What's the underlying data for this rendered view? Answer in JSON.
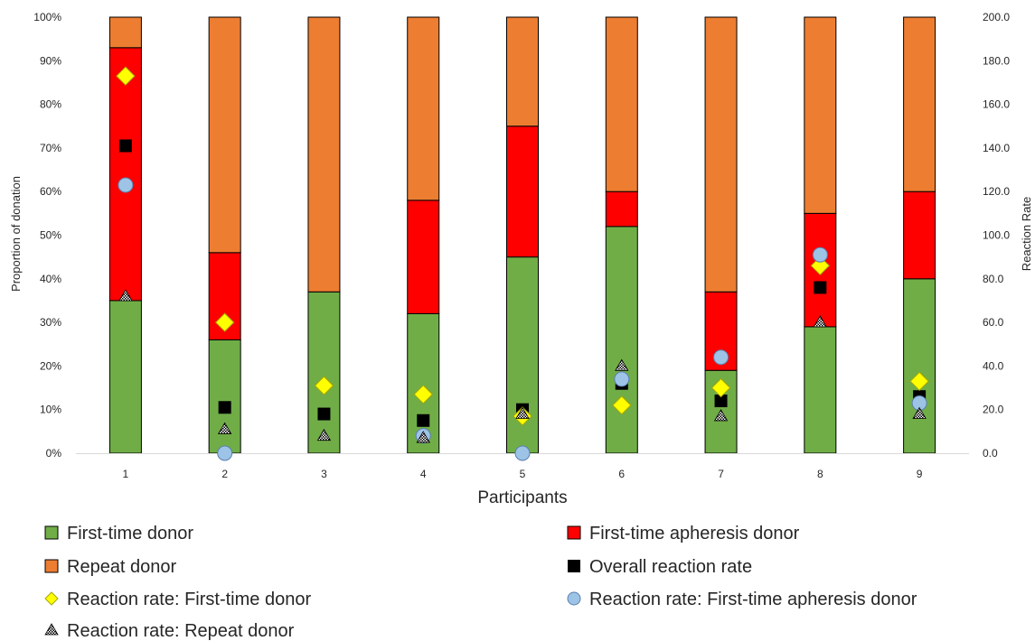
{
  "chart_data": {
    "type": "bar",
    "stacked": true,
    "categories": [
      "1",
      "2",
      "3",
      "4",
      "5",
      "6",
      "7",
      "8",
      "9"
    ],
    "xlabel": "Participants",
    "ylabel": "Proportion of donation",
    "y2label": "Reaction Rate",
    "ylim": [
      0,
      100
    ],
    "y2lim": [
      0,
      200
    ],
    "y_ticks": [
      "0%",
      "10%",
      "20%",
      "30%",
      "40%",
      "50%",
      "60%",
      "70%",
      "80%",
      "90%",
      "100%"
    ],
    "y2_ticks": [
      "0.0",
      "20.0",
      "40.0",
      "60.0",
      "80.0",
      "100.0",
      "120.0",
      "140.0",
      "160.0",
      "180.0",
      "200.0"
    ],
    "grid": false,
    "legend_position": "bottom",
    "series": [
      {
        "name": "First-time donor",
        "kind": "bar",
        "axis": "left",
        "color": "#70ad47",
        "values": [
          35,
          26,
          37,
          32,
          45,
          52,
          19,
          29,
          40
        ]
      },
      {
        "name": "First-time apheresis donor",
        "kind": "bar",
        "axis": "left",
        "color": "#ff0000",
        "values": [
          58,
          20,
          0,
          26,
          30,
          8,
          18,
          26,
          20
        ]
      },
      {
        "name": "Repeat donor",
        "kind": "bar",
        "axis": "left",
        "color": "#ed7d31",
        "values": [
          7,
          54,
          63,
          42,
          25,
          40,
          63,
          45,
          40
        ]
      },
      {
        "name": "Overall reaction rate",
        "kind": "marker",
        "marker": "square",
        "axis": "right",
        "color": "#000000",
        "values": [
          141,
          21,
          18,
          15,
          20,
          32,
          24,
          76,
          26
        ]
      },
      {
        "name": "Reaction rate: First-time donor",
        "kind": "marker",
        "marker": "diamond",
        "axis": "right",
        "color": "#ffff00",
        "values": [
          173,
          60,
          31,
          27,
          17,
          22,
          30,
          86,
          33
        ]
      },
      {
        "name": "Reaction rate: First-time apheresis donor",
        "kind": "marker",
        "marker": "circle",
        "axis": "right",
        "color": "#9dc3e6",
        "values": [
          123,
          0,
          null,
          8,
          0,
          34,
          44,
          91,
          23
        ]
      },
      {
        "name": "Reaction rate: Repeat donor",
        "kind": "marker",
        "marker": "triangle",
        "axis": "right",
        "color": "#000000",
        "values": [
          72,
          11,
          8,
          7,
          18,
          40,
          17,
          60,
          18
        ]
      }
    ]
  }
}
